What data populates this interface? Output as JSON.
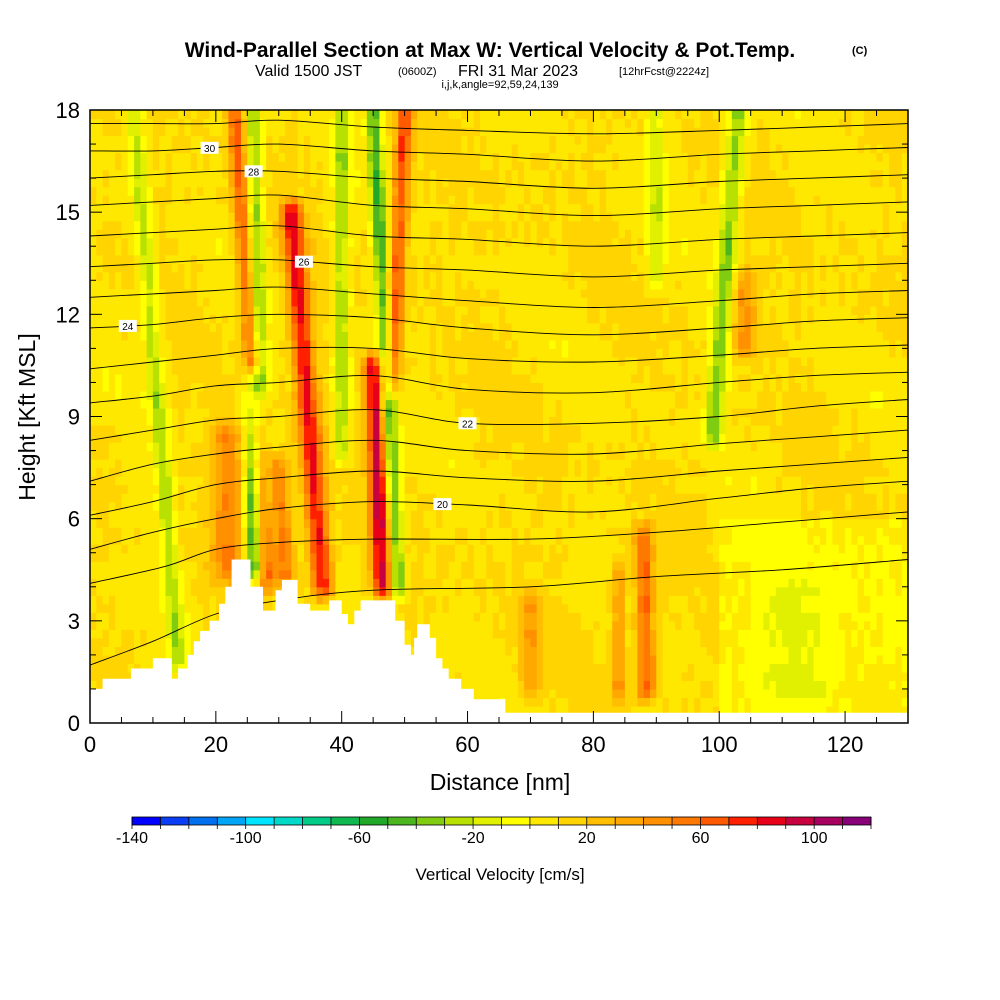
{
  "header": {
    "title": "Wind-Parallel Section at Max W: Vertical Velocity & Pot.Temp.",
    "title_tag": "(C)",
    "valid_prefix": "Valid 1500 JST",
    "valid_utc": "(0600Z)",
    "valid_date": "FRI 31 Mar 2023",
    "forecast_tag": "[12hrFcst@2224z]",
    "ijk_line": "i,j,k,angle=92,59,24,139"
  },
  "chart_data": {
    "type": "heatmap",
    "title": "Wind-Parallel Section at Max W: Vertical Velocity & Pot.Temp.",
    "xlabel": "Distance [nm]",
    "ylabel": "Height [Kft MSL]",
    "xlim": [
      0,
      130
    ],
    "ylim": [
      0,
      18
    ],
    "xticks": [
      0,
      20,
      40,
      60,
      80,
      100,
      120
    ],
    "yticks": [
      0,
      3,
      6,
      9,
      12,
      15,
      18
    ],
    "colorbar": {
      "title": "Vertical Velocity [cm/s]",
      "min": -140,
      "max": 120,
      "step": 10,
      "tick_values": [
        -140,
        -100,
        -60,
        -20,
        20,
        60,
        100
      ],
      "colors": [
        "#0000ff",
        "#0a3df5",
        "#0070ee",
        "#00a6f5",
        "#00e5ff",
        "#00d8c8",
        "#00cc88",
        "#10b850",
        "#22a828",
        "#4cb620",
        "#80cc10",
        "#b8e000",
        "#e0f000",
        "#ffff00",
        "#ffe800",
        "#ffd400",
        "#ffbe00",
        "#ffa800",
        "#ff9000",
        "#ff7800",
        "#ff5a00",
        "#ff2000",
        "#e80018",
        "#c80040",
        "#a80060",
        "#880078"
      ]
    },
    "terrain": [
      [
        0,
        1
      ],
      [
        2,
        1
      ],
      [
        2,
        1.3
      ],
      [
        6.5,
        1.3
      ],
      [
        6.5,
        1.6
      ],
      [
        10,
        1.6
      ],
      [
        10,
        1.9
      ],
      [
        13,
        1.9
      ],
      [
        13,
        1.3
      ],
      [
        14,
        1.3
      ],
      [
        14,
        1.6
      ],
      [
        15.5,
        1.6
      ],
      [
        15.5,
        2
      ],
      [
        16.5,
        2
      ],
      [
        16.5,
        2.4
      ],
      [
        17.5,
        2.4
      ],
      [
        17.5,
        2.7
      ],
      [
        19,
        2.7
      ],
      [
        19,
        3
      ],
      [
        20.5,
        3
      ],
      [
        20.5,
        3.5
      ],
      [
        21.5,
        3.5
      ],
      [
        21.5,
        4
      ],
      [
        22.5,
        4
      ],
      [
        22.5,
        4.8
      ],
      [
        25.5,
        4.8
      ],
      [
        25.5,
        4
      ],
      [
        27.5,
        4
      ],
      [
        27.5,
        3.3
      ],
      [
        29.5,
        3.3
      ],
      [
        29.5,
        3.9
      ],
      [
        30.5,
        3.9
      ],
      [
        30.5,
        4.2
      ],
      [
        33,
        4.2
      ],
      [
        33,
        3.5
      ],
      [
        35,
        3.5
      ],
      [
        35,
        3.3
      ],
      [
        38,
        3.3
      ],
      [
        38,
        3.6
      ],
      [
        40,
        3.6
      ],
      [
        40,
        3.2
      ],
      [
        41,
        3.2
      ],
      [
        41,
        2.9
      ],
      [
        42,
        2.9
      ],
      [
        42,
        3.3
      ],
      [
        43,
        3.3
      ],
      [
        43,
        3.6
      ],
      [
        48.5,
        3.6
      ],
      [
        48.5,
        3
      ],
      [
        50,
        3
      ],
      [
        50,
        2.3
      ],
      [
        51,
        2.3
      ],
      [
        51,
        2
      ],
      [
        51.5,
        2
      ],
      [
        51.5,
        2.5
      ],
      [
        52,
        2.5
      ],
      [
        52,
        2.9
      ],
      [
        54,
        2.9
      ],
      [
        54,
        2.5
      ],
      [
        55,
        2.5
      ],
      [
        55,
        1.9
      ],
      [
        56,
        1.9
      ],
      [
        56,
        1.6
      ],
      [
        57,
        1.6
      ],
      [
        57,
        1.3
      ],
      [
        59,
        1.3
      ],
      [
        59,
        1
      ],
      [
        61,
        1
      ],
      [
        61,
        0.7
      ],
      [
        66,
        0.7
      ],
      [
        66,
        0.3
      ],
      [
        130,
        0.3
      ],
      [
        130,
        0
      ],
      [
        0,
        0
      ]
    ],
    "updraft_bands": [
      {
        "x_bottom": 22,
        "x_top": 22,
        "y_bottom": 4.5,
        "y_top": 8.5,
        "w": 2.5,
        "peak": 40
      },
      {
        "x_bottom": 28,
        "x_top": 23,
        "y_bottom": 4.3,
        "y_top": 18,
        "w": 1.3,
        "peak": 55
      },
      {
        "x_bottom": 31,
        "x_top": 30,
        "y_bottom": 4.3,
        "y_top": 7.5,
        "w": 1.6,
        "peak": 45
      },
      {
        "x_bottom": 37,
        "x_top": 32,
        "y_bottom": 4,
        "y_top": 15,
        "w": 1.7,
        "peak": 75
      },
      {
        "x_bottom": 46.5,
        "x_top": 45,
        "y_bottom": 4,
        "y_top": 10.5,
        "w": 1.5,
        "peak": 85
      },
      {
        "x_bottom": 48,
        "x_top": 50,
        "y_bottom": 10,
        "y_top": 18,
        "w": 1.3,
        "peak": 60
      },
      {
        "x_bottom": 88.5,
        "x_top": 88,
        "y_bottom": 1,
        "y_top": 5.5,
        "w": 1.5,
        "peak": 55
      },
      {
        "x_bottom": 84,
        "x_top": 84,
        "y_bottom": 1,
        "y_top": 4.5,
        "w": 1.1,
        "peak": 35
      },
      {
        "x_bottom": 104,
        "x_top": 104,
        "y_bottom": 11,
        "y_top": 13,
        "w": 2,
        "peak": 35
      },
      {
        "x_bottom": 70,
        "x_top": 70,
        "y_bottom": 1,
        "y_top": 3.5,
        "w": 1.5,
        "peak": 30
      }
    ],
    "downdraft_bands": [
      {
        "x_bottom": 14,
        "x_top": 7,
        "y_bottom": 2,
        "y_top": 18,
        "w": 1.3,
        "peak": -35
      },
      {
        "x_bottom": 26,
        "x_top": 26,
        "y_bottom": 4.5,
        "y_top": 10,
        "w": 1.5,
        "peak": -70
      },
      {
        "x_bottom": 27,
        "x_top": 26,
        "y_bottom": 10,
        "y_top": 18,
        "w": 1.3,
        "peak": -40
      },
      {
        "x_bottom": 40,
        "x_top": 40,
        "y_bottom": 8,
        "y_top": 18,
        "w": 1.2,
        "peak": -40
      },
      {
        "x_bottom": 49,
        "x_top": 45,
        "y_bottom": 4,
        "y_top": 18,
        "w": 1.2,
        "peak": -55
      },
      {
        "x_bottom": 90,
        "x_top": 90,
        "y_bottom": 13,
        "y_top": 18,
        "w": 1.5,
        "peak": -25
      },
      {
        "x_bottom": 99,
        "x_top": 103,
        "y_bottom": 8.5,
        "y_top": 18,
        "w": 1.5,
        "peak": -45
      },
      {
        "x_bottom": 112,
        "x_top": 112,
        "y_bottom": 1,
        "y_top": 4,
        "w": 6,
        "peak": -12
      }
    ],
    "isentropes": [
      {
        "label": "",
        "pts": [
          [
            0,
            1.7
          ],
          [
            10,
            2.4
          ],
          [
            20,
            3.2
          ],
          [
            30,
            3.6
          ],
          [
            45,
            3.9
          ],
          [
            70,
            4
          ],
          [
            90,
            4.3
          ],
          [
            110,
            4.5
          ],
          [
            130,
            4.8
          ]
        ]
      },
      {
        "label": "",
        "pts": [
          [
            0,
            4.1
          ],
          [
            12,
            4.6
          ],
          [
            20,
            5.1
          ],
          [
            30,
            5.3
          ],
          [
            45,
            5.4
          ],
          [
            70,
            5.4
          ],
          [
            90,
            5.6
          ],
          [
            110,
            5.9
          ],
          [
            130,
            6.2
          ]
        ]
      },
      {
        "label": "20",
        "lx": 56,
        "pts": [
          [
            0,
            5.1
          ],
          [
            10,
            5.6
          ],
          [
            20,
            6
          ],
          [
            30,
            6.3
          ],
          [
            45,
            6.5
          ],
          [
            60,
            6.4
          ],
          [
            80,
            6.2
          ],
          [
            100,
            6.6
          ],
          [
            115,
            6.9
          ],
          [
            130,
            7.1
          ]
        ]
      },
      {
        "label": "",
        "pts": [
          [
            0,
            6.1
          ],
          [
            10,
            6.5
          ],
          [
            20,
            7
          ],
          [
            30,
            7.2
          ],
          [
            45,
            7.4
          ],
          [
            60,
            7.2
          ],
          [
            80,
            7.1
          ],
          [
            100,
            7.4
          ],
          [
            115,
            7.6
          ],
          [
            130,
            7.8
          ]
        ]
      },
      {
        "label": "",
        "pts": [
          [
            0,
            7.1
          ],
          [
            10,
            7.6
          ],
          [
            20,
            7.9
          ],
          [
            30,
            8.1
          ],
          [
            45,
            8.3
          ],
          [
            60,
            8
          ],
          [
            80,
            7.9
          ],
          [
            100,
            8.2
          ],
          [
            115,
            8.4
          ],
          [
            130,
            8.6
          ]
        ]
      },
      {
        "label": "22",
        "lx": 60,
        "pts": [
          [
            0,
            8.3
          ],
          [
            10,
            8.6
          ],
          [
            20,
            8.9
          ],
          [
            30,
            9
          ],
          [
            45,
            9.2
          ],
          [
            60,
            8.8
          ],
          [
            80,
            8.8
          ],
          [
            100,
            9
          ],
          [
            115,
            9.3
          ],
          [
            130,
            9.5
          ]
        ]
      },
      {
        "label": "",
        "pts": [
          [
            0,
            9.4
          ],
          [
            10,
            9.6
          ],
          [
            20,
            9.9
          ],
          [
            30,
            10
          ],
          [
            45,
            10.2
          ],
          [
            60,
            9.8
          ],
          [
            80,
            9.7
          ],
          [
            100,
            10
          ],
          [
            115,
            10.2
          ],
          [
            130,
            10.3
          ]
        ]
      },
      {
        "label": "",
        "pts": [
          [
            0,
            10.4
          ],
          [
            10,
            10.6
          ],
          [
            20,
            10.8
          ],
          [
            30,
            11
          ],
          [
            45,
            11
          ],
          [
            60,
            10.7
          ],
          [
            80,
            10.6
          ],
          [
            100,
            10.8
          ],
          [
            115,
            11
          ],
          [
            130,
            11.1
          ]
        ]
      },
      {
        "label": "24",
        "lx": 6,
        "pts": [
          [
            0,
            11.6
          ],
          [
            10,
            11.7
          ],
          [
            20,
            11.9
          ],
          [
            30,
            12
          ],
          [
            45,
            11.9
          ],
          [
            60,
            11.6
          ],
          [
            80,
            11.4
          ],
          [
            100,
            11.6
          ],
          [
            115,
            11.8
          ],
          [
            130,
            11.9
          ]
        ]
      },
      {
        "label": "",
        "pts": [
          [
            0,
            12.5
          ],
          [
            10,
            12.6
          ],
          [
            20,
            12.7
          ],
          [
            30,
            12.8
          ],
          [
            45,
            12.6
          ],
          [
            60,
            12.4
          ],
          [
            80,
            12.2
          ],
          [
            100,
            12.4
          ],
          [
            115,
            12.6
          ],
          [
            130,
            12.7
          ]
        ]
      },
      {
        "label": "26",
        "lx": 34,
        "pts": [
          [
            0,
            13.4
          ],
          [
            10,
            13.5
          ],
          [
            20,
            13.6
          ],
          [
            30,
            13.6
          ],
          [
            45,
            13.4
          ],
          [
            60,
            13.3
          ],
          [
            80,
            13.1
          ],
          [
            100,
            13.3
          ],
          [
            115,
            13.4
          ],
          [
            130,
            13.5
          ]
        ]
      },
      {
        "label": "",
        "pts": [
          [
            0,
            14.3
          ],
          [
            10,
            14.4
          ],
          [
            20,
            14.5
          ],
          [
            30,
            14.6
          ],
          [
            45,
            14.3
          ],
          [
            60,
            14.2
          ],
          [
            80,
            14
          ],
          [
            100,
            14.2
          ],
          [
            115,
            14.3
          ],
          [
            130,
            14.4
          ]
        ]
      },
      {
        "label": "",
        "pts": [
          [
            0,
            15.2
          ],
          [
            10,
            15.3
          ],
          [
            20,
            15.4
          ],
          [
            30,
            15.5
          ],
          [
            45,
            15.2
          ],
          [
            60,
            15.1
          ],
          [
            80,
            14.9
          ],
          [
            100,
            15.1
          ],
          [
            115,
            15.2
          ],
          [
            130,
            15.3
          ]
        ]
      },
      {
        "label": "28",
        "lx": 26,
        "pts": [
          [
            0,
            16
          ],
          [
            10,
            16.1
          ],
          [
            20,
            16.2
          ],
          [
            30,
            16.2
          ],
          [
            45,
            16
          ],
          [
            60,
            15.9
          ],
          [
            80,
            15.7
          ],
          [
            100,
            15.9
          ],
          [
            115,
            16
          ],
          [
            130,
            16.1
          ]
        ]
      },
      {
        "label": "30",
        "lx": 19,
        "pts": [
          [
            0,
            16.8
          ],
          [
            10,
            16.8
          ],
          [
            20,
            16.9
          ],
          [
            30,
            17
          ],
          [
            45,
            16.8
          ],
          [
            60,
            16.7
          ],
          [
            80,
            16.5
          ],
          [
            100,
            16.7
          ],
          [
            115,
            16.8
          ],
          [
            130,
            16.9
          ]
        ]
      },
      {
        "label": "",
        "pts": [
          [
            0,
            17.6
          ],
          [
            10,
            17.6
          ],
          [
            20,
            17.6
          ],
          [
            30,
            17.7
          ],
          [
            45,
            17.5
          ],
          [
            60,
            17.4
          ],
          [
            80,
            17.3
          ],
          [
            100,
            17.4
          ],
          [
            115,
            17.5
          ],
          [
            130,
            17.6
          ]
        ]
      }
    ]
  }
}
